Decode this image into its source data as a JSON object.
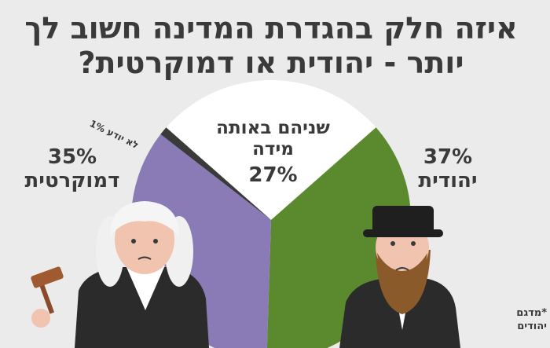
{
  "title": "איזה חלק בהגדרת המדינה חשוב לך יותר - יהודית או דמוקרטית?",
  "footnote": "*מדגם יהודים",
  "chart_data": {
    "type": "pie",
    "title": "איזה חלק בהגדרת המדינה חשוב לך יותר - יהודית או דמוקרטית?",
    "slices": [
      {
        "label": "שניהם באותה מידה",
        "value": 27,
        "display": "27%",
        "color": "#ffffff"
      },
      {
        "label": "יהודית",
        "value": 37,
        "display": "37%",
        "color": "#5b8a2e"
      },
      {
        "label": "דמוקרטית",
        "value": 35,
        "display": "35%",
        "color": "#8a7ab5"
      },
      {
        "label": "לא יודע",
        "value": 1,
        "display": "1%",
        "color": "#3a3a3a"
      }
    ]
  }
}
